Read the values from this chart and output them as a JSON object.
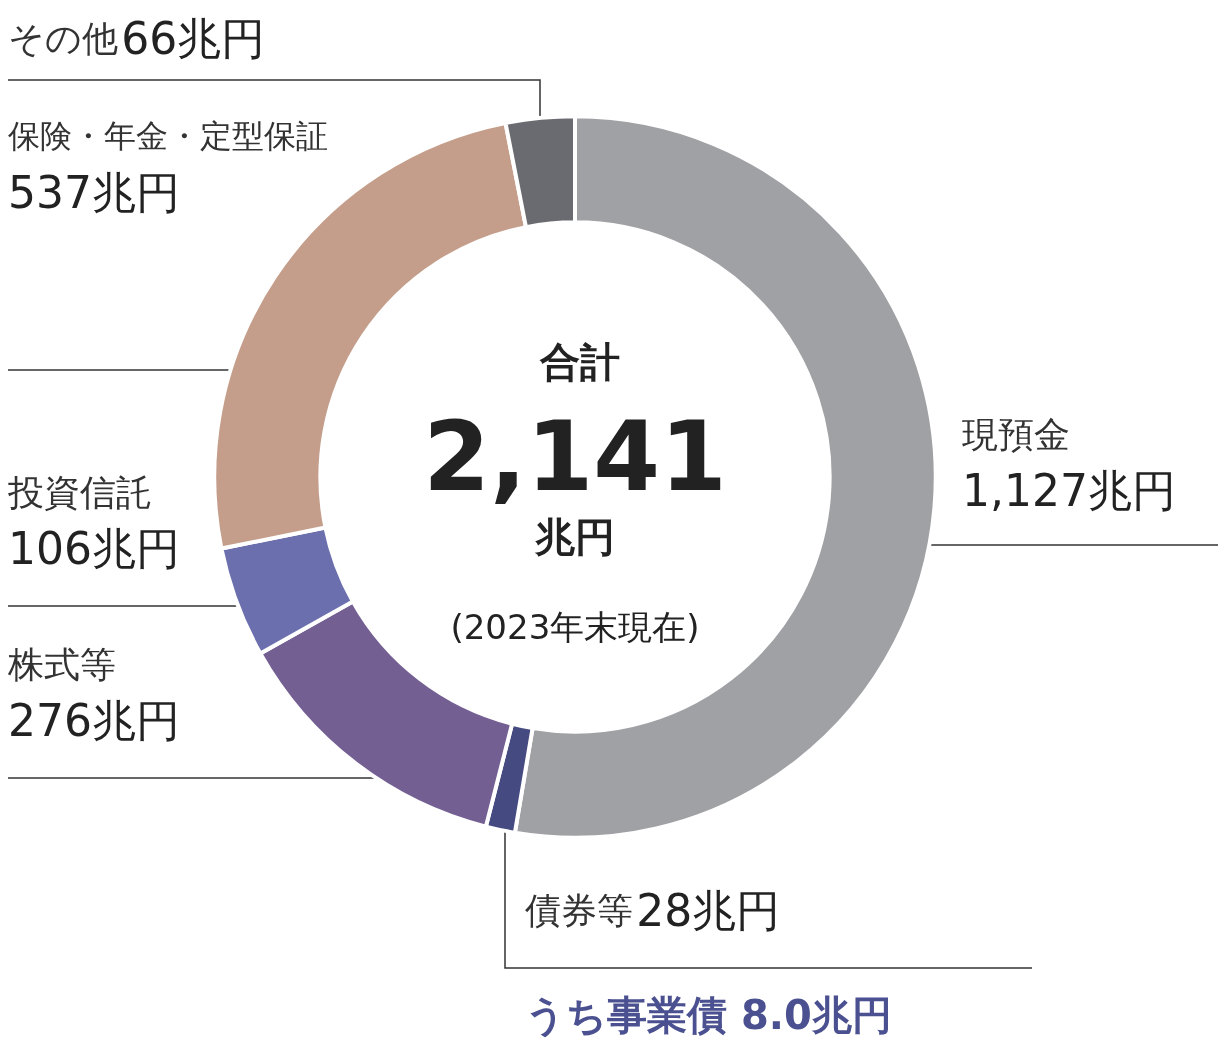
{
  "chart_data": {
    "type": "donut",
    "title": "合計",
    "categories": [
      "現預金",
      "債券等",
      "株式等",
      "投資信託",
      "保険・年金・定型保証",
      "その他"
    ],
    "values": [
      1127,
      28,
      276,
      106,
      537,
      66
    ],
    "value_labels": [
      "1,127兆円",
      "28兆円",
      "276兆円",
      "106兆円",
      "537兆円",
      "66兆円"
    ],
    "colors": [
      "#a0a1a5",
      "#454b80",
      "#735f92",
      "#6c6fad",
      "#c49e8b",
      "#6a6b70"
    ],
    "legend": false,
    "annotations": [
      "2,141",
      "兆円",
      "(2023年末現在)",
      "うち事業債 8.0兆円"
    ]
  }
}
